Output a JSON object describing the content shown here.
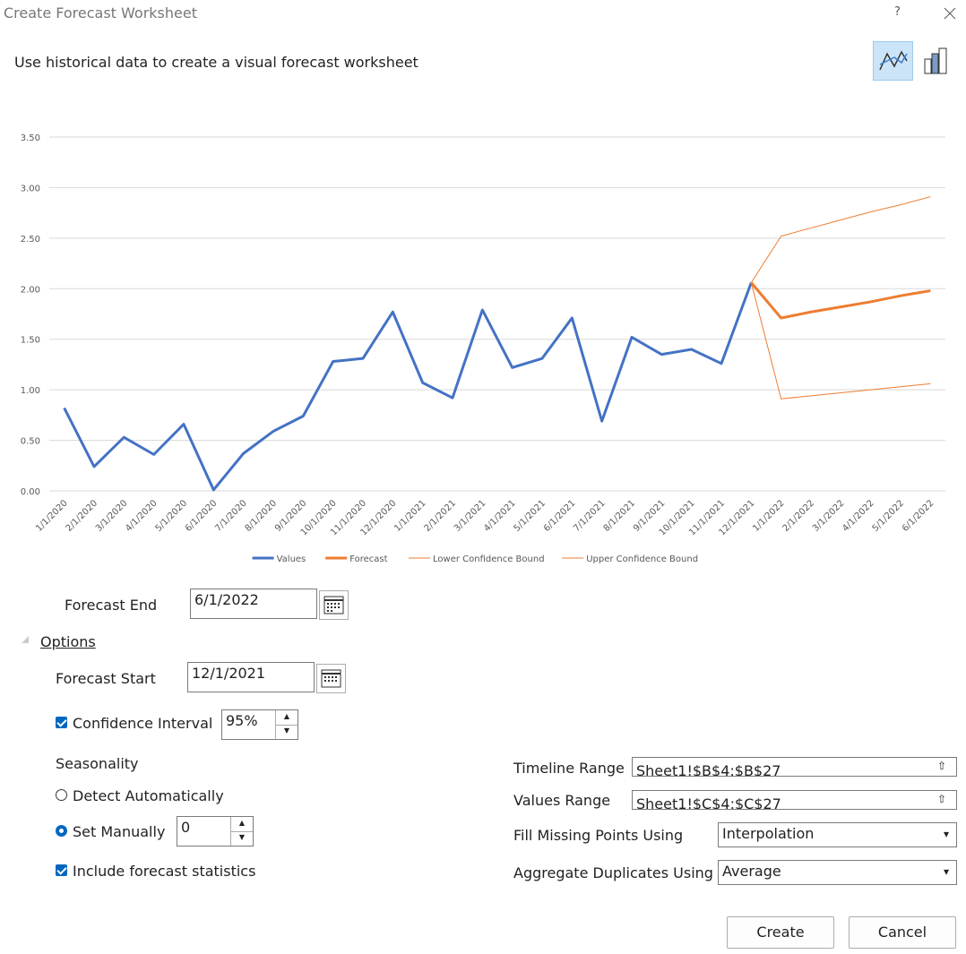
{
  "dialog": {
    "title": "Create Forecast Worksheet",
    "help": "?",
    "subtitle": "Use historical data to create a visual forecast worksheet"
  },
  "chart_data": {
    "type": "line",
    "categories": [
      "1/1/2020",
      "2/1/2020",
      "3/1/2020",
      "4/1/2020",
      "5/1/2020",
      "6/1/2020",
      "7/1/2020",
      "8/1/2020",
      "9/1/2020",
      "10/1/2020",
      "11/1/2020",
      "12/1/2020",
      "1/1/2021",
      "2/1/2021",
      "3/1/2021",
      "4/1/2021",
      "5/1/2021",
      "6/1/2021",
      "7/1/2021",
      "8/1/2021",
      "9/1/2021",
      "10/1/2021",
      "11/1/2021",
      "12/1/2021",
      "1/1/2022",
      "2/1/2022",
      "3/1/2022",
      "4/1/2022",
      "5/1/2022",
      "6/1/2022"
    ],
    "series": [
      {
        "name": "Values",
        "color": "#4472c4",
        "width": 3,
        "values": [
          0.82,
          0.24,
          0.53,
          0.36,
          0.66,
          0.01,
          0.37,
          0.59,
          0.74,
          1.28,
          1.31,
          1.77,
          1.07,
          0.92,
          1.79,
          1.22,
          1.31,
          1.71,
          0.69,
          1.52,
          1.35,
          1.4,
          1.26,
          2.06,
          null,
          null,
          null,
          null,
          null,
          null
        ]
      },
      {
        "name": "Forecast",
        "color": "#ed7d31",
        "width": 3,
        "values": [
          null,
          null,
          null,
          null,
          null,
          null,
          null,
          null,
          null,
          null,
          null,
          null,
          null,
          null,
          null,
          null,
          null,
          null,
          null,
          null,
          null,
          null,
          null,
          2.06,
          1.71,
          1.77,
          1.82,
          1.87,
          1.93,
          1.98
        ]
      },
      {
        "name": "Lower Confidence Bound",
        "color": "#ed7d31",
        "width": 1,
        "values": [
          null,
          null,
          null,
          null,
          null,
          null,
          null,
          null,
          null,
          null,
          null,
          null,
          null,
          null,
          null,
          null,
          null,
          null,
          null,
          null,
          null,
          null,
          null,
          2.06,
          0.91,
          0.94,
          0.97,
          1.0,
          1.03,
          1.06
        ]
      },
      {
        "name": "Upper Confidence Bound",
        "color": "#ed7d31",
        "width": 1,
        "values": [
          null,
          null,
          null,
          null,
          null,
          null,
          null,
          null,
          null,
          null,
          null,
          null,
          null,
          null,
          null,
          null,
          null,
          null,
          null,
          null,
          null,
          null,
          null,
          2.06,
          2.52,
          2.6,
          2.68,
          2.76,
          2.83,
          2.91
        ]
      }
    ],
    "ylim": [
      0,
      3.5
    ],
    "yticks": [
      {
        "value": 0,
        "label": "0.00"
      },
      {
        "value": 0.5,
        "label": "0.50"
      },
      {
        "value": 1,
        "label": "1.00"
      },
      {
        "value": 1.5,
        "label": "1.50"
      },
      {
        "value": 2,
        "label": "2.00"
      },
      {
        "value": 2.5,
        "label": "2.50"
      },
      {
        "value": 3,
        "label": "3.00"
      },
      {
        "value": 3.5,
        "label": "3.50"
      }
    ],
    "grid": true,
    "legend": "bottom"
  },
  "form": {
    "forecast_end": {
      "label": "Forecast End",
      "value": "6/1/2022"
    },
    "options": "Options",
    "forecast_start": {
      "label": "Forecast Start",
      "value": "12/1/2021"
    },
    "confidence_interval": {
      "label": "Confidence Interval",
      "checked": true,
      "value": "95%"
    },
    "seasonality": {
      "label": "Seasonality",
      "detect": "Detect Automatically",
      "manual": "Set Manually",
      "selected": "manual",
      "value": "0"
    },
    "include_stats": {
      "label": "Include forecast statistics",
      "checked": true
    },
    "timeline_range": {
      "label": "Timeline Range",
      "value": "Sheet1!$B$4:$B$27"
    },
    "values_range": {
      "label": "Values Range",
      "value": "Sheet1!$C$4:$C$27"
    },
    "fill_missing": {
      "label": "Fill Missing Points Using",
      "value": "Interpolation"
    },
    "aggregate": {
      "label": "Aggregate Duplicates Using",
      "value": "Average"
    },
    "create": "Create",
    "cancel": "Cancel"
  }
}
